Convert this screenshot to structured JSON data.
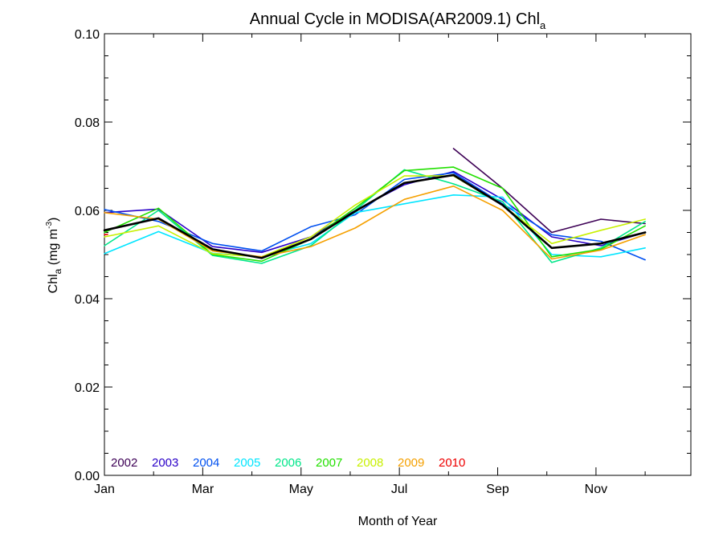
{
  "chart_data": {
    "type": "line",
    "title": "Annual Cycle in MODISA(AR2009.1) Chl",
    "title_subscript": "a",
    "xlabel": "Month of Year",
    "ylabel_main": "Chl",
    "ylabel_sub": "a",
    "ylabel_units": "(mg m",
    "ylabel_units_sup": "-3",
    "ylabel_units_close": ")",
    "xlim": [
      1,
      12.93
    ],
    "ylim": [
      0.0,
      0.1
    ],
    "x_ticks": [
      1,
      3,
      5,
      7,
      9,
      11
    ],
    "x_tick_labels": [
      "Jan",
      "Mar",
      "May",
      "Jul",
      "Sep",
      "Nov"
    ],
    "y_ticks": [
      0.0,
      0.02,
      0.04,
      0.06,
      0.08,
      0.1
    ],
    "y_tick_labels": [
      "0.00",
      "0.02",
      "0.04",
      "0.06",
      "0.08",
      "0.10"
    ],
    "grid": false,
    "legend_position": "bottom-left",
    "x": [
      1,
      2.1,
      3.2,
      4.2,
      5.2,
      6.1,
      7.1,
      8.1,
      9.1,
      10.1,
      11.1,
      12.0
    ],
    "series": [
      {
        "name": "2002",
        "color": "#3d0055",
        "values": [
          null,
          null,
          null,
          null,
          null,
          null,
          null,
          0.074,
          0.065,
          0.055,
          0.058,
          0.057
        ]
      },
      {
        "name": "2003",
        "color": "#2a00c8",
        "values": [
          0.0595,
          0.0603,
          0.0518,
          0.0505,
          0.054,
          0.06,
          0.0658,
          0.0688,
          0.0625,
          0.054,
          0.052,
          0.055
        ]
      },
      {
        "name": "2004",
        "color": "#0050f0",
        "values": [
          0.0602,
          0.0575,
          0.0525,
          0.0508,
          0.0563,
          0.059,
          0.067,
          0.0685,
          0.0615,
          0.0545,
          0.053,
          0.0488
        ]
      },
      {
        "name": "2005",
        "color": "#00e5ff",
        "values": [
          0.0502,
          0.0552,
          0.0503,
          0.0495,
          0.0525,
          0.0595,
          0.0615,
          0.0635,
          0.063,
          0.05,
          0.0495,
          0.0515
        ]
      },
      {
        "name": "2006",
        "color": "#00e68a",
        "values": [
          0.052,
          0.06,
          0.0498,
          0.048,
          0.052,
          0.06,
          0.0692,
          0.066,
          0.062,
          0.0482,
          0.0515,
          0.0575
        ]
      },
      {
        "name": "2007",
        "color": "#22e000",
        "values": [
          0.055,
          0.0605,
          0.05,
          0.0485,
          0.0535,
          0.0605,
          0.069,
          0.0698,
          0.065,
          0.0495,
          0.0512,
          0.0565
        ]
      },
      {
        "name": "2008",
        "color": "#c8f000",
        "values": [
          0.054,
          0.0565,
          0.0502,
          0.0495,
          0.054,
          0.0612,
          0.0678,
          0.0678,
          0.0612,
          0.0525,
          0.0555,
          0.058
        ]
      },
      {
        "name": "2009",
        "color": "#f5a000",
        "values": [
          0.0595,
          0.058,
          0.0508,
          0.0495,
          0.0518,
          0.056,
          0.0625,
          0.0655,
          0.06,
          0.049,
          0.051,
          0.0545
        ]
      },
      {
        "name": "2010",
        "color": "#ee0000",
        "values": [
          0.0545,
          null,
          null,
          null,
          null,
          null,
          null,
          null,
          null,
          null,
          null,
          null
        ]
      },
      {
        "name": "",
        "color": "#000000",
        "values": [
          0.0555,
          0.0582,
          0.0512,
          0.0492,
          0.0535,
          0.0598,
          0.0662,
          0.068,
          0.0612,
          0.0515,
          0.0525,
          0.055
        ]
      }
    ]
  }
}
